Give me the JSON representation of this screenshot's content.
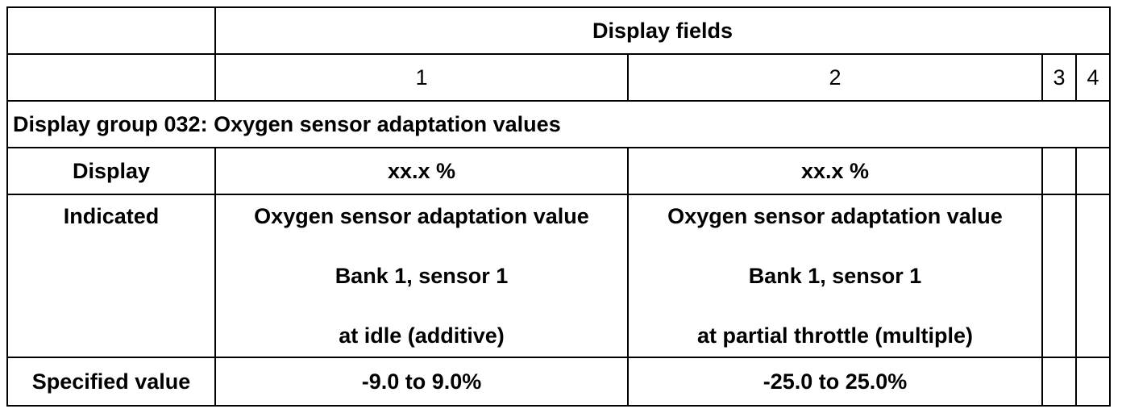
{
  "table": {
    "header": "Display fields",
    "fields": [
      "1",
      "2",
      "3",
      "4"
    ],
    "group_title": "Display group 032: Oxygen sensor adaptation values",
    "rows": {
      "display": {
        "label": "Display",
        "f1": "xx.x %",
        "f2": "xx.x %"
      },
      "indicated": {
        "label": "Indicated",
        "f1": [
          "Oxygen sensor adaptation value",
          "Bank 1, sensor 1",
          "at idle (additive)"
        ],
        "f2": [
          "Oxygen sensor adaptation value",
          "Bank 1, sensor 1",
          "at partial throttle (multiple)"
        ]
      },
      "specified": {
        "label": "Specified value",
        "f1": "-9.0 to 9.0%",
        "f2": "-25.0 to 25.0%"
      }
    }
  }
}
